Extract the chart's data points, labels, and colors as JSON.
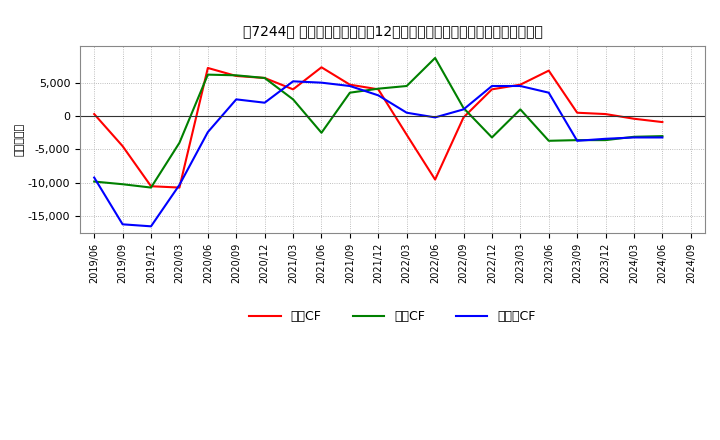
{
  "title": "［7244］ キャッシュフローの12か月移動合計の対前年同期増減額の推移",
  "ylabel": "（百万円）",
  "background_color": "#ffffff",
  "plot_bg_color": "#ffffff",
  "grid_color": "#aaaaaa",
  "ylim": [
    -17500,
    10500
  ],
  "yticks": [
    -15000,
    -10000,
    -5000,
    0,
    5000
  ],
  "x_labels": [
    "2019/06",
    "2019/09",
    "2019/12",
    "2020/03",
    "2020/06",
    "2020/09",
    "2020/12",
    "2021/03",
    "2021/06",
    "2021/09",
    "2021/12",
    "2022/03",
    "2022/06",
    "2022/09",
    "2022/12",
    "2023/03",
    "2023/06",
    "2023/09",
    "2023/12",
    "2024/03",
    "2024/06",
    "2024/09"
  ],
  "operating_cf": [
    300,
    -4500,
    -10500,
    -10700,
    7200,
    6000,
    5700,
    4000,
    7300,
    4700,
    4000,
    -2800,
    -9500,
    -200,
    4000,
    4700,
    6800,
    500,
    300,
    -400,
    -900,
    null
  ],
  "investing_cf": [
    -9800,
    -10200,
    -10700,
    -4000,
    6200,
    6100,
    5700,
    2500,
    -2500,
    3500,
    4100,
    4500,
    8700,
    1200,
    -3200,
    1000,
    -3700,
    -3600,
    -3600,
    -3100,
    -3000,
    null
  ],
  "free_cf": [
    -9200,
    -16200,
    -16500,
    -10300,
    -2400,
    2500,
    2000,
    5200,
    5000,
    4500,
    3100,
    500,
    -200,
    1000,
    4500,
    4500,
    3500,
    -3700,
    -3400,
    -3200,
    -3200,
    null
  ],
  "line_colors": {
    "operating": "#ff0000",
    "investing": "#008000",
    "free": "#0000ff"
  },
  "legend_labels": [
    "営業CF",
    "投資CF",
    "フリーCF"
  ],
  "line_width": 1.5
}
